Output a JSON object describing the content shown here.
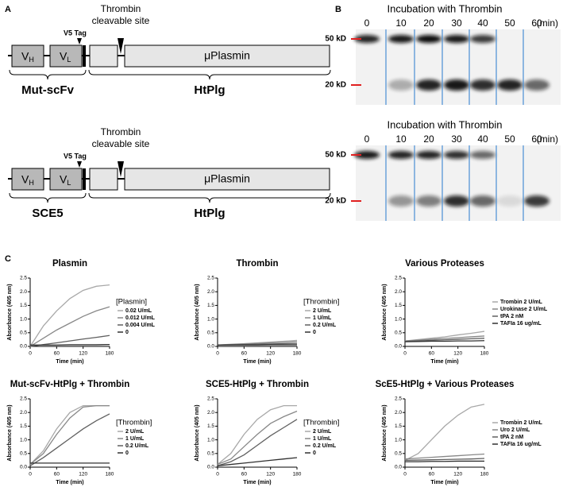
{
  "panel_labels": [
    "A",
    "B",
    "C"
  ],
  "diagrams": [
    {
      "site_lines": [
        "Thrombin",
        "cleavable site"
      ],
      "tag": "V5 Tag",
      "domains": [
        {
          "text": "V",
          "sub": "H"
        },
        {
          "text": "V",
          "sub": "L"
        },
        "μPlasmin"
      ],
      "braces": [
        "Mut-scFv",
        "HtPlg"
      ]
    },
    {
      "site_lines": [
        "Thrombin",
        "cleavable site"
      ],
      "tag": "V5 Tag",
      "domains": [
        {
          "text": "V",
          "sub": "H"
        },
        {
          "text": "V",
          "sub": "L"
        },
        "μPlasmin"
      ],
      "braces": [
        "SCE5",
        "HtPlg"
      ]
    }
  ],
  "blots": [
    {
      "title": "Incubation with Thrombin",
      "lanes": [
        "0",
        "10",
        "20",
        "30",
        "40",
        "50",
        "60"
      ],
      "unit": "(min)",
      "markers": [
        "50 kD",
        "20 kD"
      ]
    },
    {
      "title": "Incubation with Thrombin",
      "lanes": [
        "0",
        "10",
        "20",
        "30",
        "40",
        "50",
        "60"
      ],
      "unit": "(min)",
      "markers": [
        "50 kD",
        "20 kD"
      ]
    }
  ],
  "chart_data": [
    {
      "type": "line",
      "title": "Plasmin",
      "x_label": "Time (min)",
      "y_label": "Absorbance (405 nm)",
      "legend_title": "[Plasmin]",
      "x": [
        0,
        30,
        60,
        90,
        120,
        150,
        180
      ],
      "xlim": [
        0,
        180
      ],
      "xticks": [
        0,
        60,
        120,
        180
      ],
      "ylim": [
        0,
        2.5
      ],
      "yticks": [
        {
          "value": 0,
          "label": "0.0"
        },
        0.5,
        {
          "value": 1,
          "label": "1.0"
        },
        1.5,
        {
          "value": 2,
          "label": "2.0"
        },
        2.5
      ],
      "series": [
        {
          "name": "0.02 U/mL",
          "color": "#a8a8a8",
          "values": [
            0,
            0.75,
            1.3,
            1.75,
            2.05,
            2.2,
            2.25
          ]
        },
        {
          "name": "0.012 U/mL",
          "color": "#888888",
          "values": [
            0,
            0.3,
            0.6,
            0.85,
            1.1,
            1.3,
            1.45
          ]
        },
        {
          "name": "0.004 U/mL",
          "color": "#606060",
          "values": [
            0,
            0.07,
            0.13,
            0.2,
            0.27,
            0.33,
            0.4
          ]
        },
        {
          "name": "0",
          "color": "#303030",
          "values": [
            0.05,
            0.05,
            0.05,
            0.06,
            0.06,
            0.06,
            0.07
          ]
        }
      ]
    },
    {
      "type": "line",
      "title": "Thrombin",
      "x_label": "Time (min)",
      "y_label": "Absorbance (405 nm)",
      "legend_title": "[Thrombin]",
      "x": [
        0,
        30,
        60,
        90,
        120,
        150,
        180
      ],
      "xlim": [
        0,
        180
      ],
      "xticks": [
        0,
        60,
        120,
        180
      ],
      "ylim": [
        0,
        2.5
      ],
      "yticks": [
        {
          "value": 0,
          "label": "0.0"
        },
        0.5,
        {
          "value": 1,
          "label": "1.0"
        },
        1.5,
        {
          "value": 2,
          "label": "2.0"
        },
        2.5
      ],
      "series": [
        {
          "name": "2 U/mL",
          "color": "#a8a8a8",
          "values": [
            0.05,
            0.08,
            0.1,
            0.13,
            0.16,
            0.19,
            0.22
          ]
        },
        {
          "name": "1 U/mL",
          "color": "#888888",
          "values": [
            0.05,
            0.07,
            0.09,
            0.11,
            0.13,
            0.15,
            0.17
          ]
        },
        {
          "name": "0.2 U/mL",
          "color": "#606060",
          "values": [
            0.05,
            0.06,
            0.07,
            0.08,
            0.09,
            0.1,
            0.11
          ]
        },
        {
          "name": "0",
          "color": "#303030",
          "values": [
            0.05,
            0.05,
            0.05,
            0.05,
            0.06,
            0.06,
            0.06
          ]
        }
      ]
    },
    {
      "type": "line",
      "title": "Various Proteases",
      "x_label": "Time (min)",
      "y_label": "Absorbance (405 nm)",
      "x": [
        0,
        30,
        60,
        90,
        120,
        150,
        180
      ],
      "xlim": [
        0,
        180
      ],
      "xticks": [
        0,
        60,
        120,
        180
      ],
      "ylim": [
        0,
        2.5
      ],
      "yticks": [
        {
          "value": 0,
          "label": "0.0"
        },
        0.5,
        {
          "value": 1,
          "label": "1.0"
        },
        1.5,
        {
          "value": 2,
          "label": "2.0"
        },
        2.5
      ],
      "series": [
        {
          "name": "Trombin 2 U/mL",
          "color": "#a8a8a8",
          "values": [
            0.2,
            0.25,
            0.3,
            0.35,
            0.42,
            0.48,
            0.55
          ]
        },
        {
          "name": "Urokinase 2 U/mL",
          "color": "#888888",
          "values": [
            0.2,
            0.23,
            0.26,
            0.29,
            0.32,
            0.35,
            0.38
          ]
        },
        {
          "name": "tPA 2 nM",
          "color": "#606060",
          "values": [
            0.18,
            0.2,
            0.22,
            0.24,
            0.26,
            0.28,
            0.3
          ]
        },
        {
          "name": "TAFIa 16 ug/mL",
          "color": "#303030",
          "values": [
            0.17,
            0.18,
            0.19,
            0.19,
            0.2,
            0.2,
            0.21
          ]
        }
      ]
    },
    {
      "type": "line",
      "title": "Mut-scFv-HtPlg + Thrombin",
      "x_label": "Time (min)",
      "y_label": "Absorbance (405 nm)",
      "legend_title": "[Thrombin]",
      "x": [
        0,
        30,
        60,
        90,
        120,
        150,
        180
      ],
      "xlim": [
        0,
        180
      ],
      "xticks": [
        0,
        60,
        120,
        180
      ],
      "ylim": [
        0,
        2.5
      ],
      "yticks": [
        {
          "value": 0,
          "label": "0.0"
        },
        0.5,
        {
          "value": 1,
          "label": "1.0"
        },
        1.5,
        {
          "value": 2,
          "label": "2.0"
        },
        2.5
      ],
      "series": [
        {
          "name": "2 U/mL",
          "color": "#a8a8a8",
          "values": [
            0.1,
            0.6,
            1.4,
            2.0,
            2.25,
            2.25,
            2.25
          ]
        },
        {
          "name": "1 U/mL",
          "color": "#888888",
          "values": [
            0.1,
            0.5,
            1.2,
            1.8,
            2.2,
            2.25,
            2.25
          ]
        },
        {
          "name": "0.2 U/mL",
          "color": "#606060",
          "values": [
            0.05,
            0.35,
            0.7,
            1.05,
            1.4,
            1.7,
            1.95
          ]
        },
        {
          "name": "0",
          "color": "#303030",
          "values": [
            0.15,
            0.15,
            0.15,
            0.15,
            0.15,
            0.15,
            0.15
          ]
        }
      ]
    },
    {
      "type": "line",
      "title": "SCE5-HtPlg + Thrombin",
      "x_label": "Time (min)",
      "y_label": "Absorbance (405 nm)",
      "legend_title": "[Thrombin]",
      "x": [
        0,
        30,
        60,
        90,
        120,
        150,
        180
      ],
      "xlim": [
        0,
        180
      ],
      "xticks": [
        0,
        60,
        120,
        180
      ],
      "ylim": [
        0,
        2.5
      ],
      "yticks": [
        {
          "value": 0,
          "label": "0.0"
        },
        0.5,
        {
          "value": 1,
          "label": "1.0"
        },
        1.5,
        {
          "value": 2,
          "label": "2.0"
        },
        2.5
      ],
      "series": [
        {
          "name": "2 U/mL",
          "color": "#a8a8a8",
          "values": [
            0.1,
            0.5,
            1.2,
            1.75,
            2.1,
            2.25,
            2.25
          ]
        },
        {
          "name": "1 U/mL",
          "color": "#888888",
          "values": [
            0.1,
            0.3,
            0.75,
            1.2,
            1.6,
            1.85,
            2.05
          ]
        },
        {
          "name": "0.2 U/mL",
          "color": "#606060",
          "values": [
            0.05,
            0.2,
            0.45,
            0.8,
            1.15,
            1.45,
            1.75
          ]
        },
        {
          "name": "0",
          "color": "#303030",
          "values": [
            0.05,
            0.1,
            0.15,
            0.2,
            0.25,
            0.3,
            0.35
          ]
        }
      ]
    },
    {
      "type": "line",
      "title": "ScE5-HtPlg + Various Proteases",
      "x_label": "Time (min)",
      "y_label": "Absorbance (405 nm)",
      "x": [
        0,
        30,
        60,
        90,
        120,
        150,
        180
      ],
      "xlim": [
        0,
        180
      ],
      "xticks": [
        0,
        60,
        120,
        180
      ],
      "ylim": [
        0,
        2.5
      ],
      "yticks": [
        {
          "value": 0,
          "label": "0.0"
        },
        0.5,
        {
          "value": 1,
          "label": "1.0"
        },
        1.5,
        {
          "value": 2,
          "label": "2.0"
        },
        2.5
      ],
      "series": [
        {
          "name": "Trombin 2 U/mL",
          "color": "#a8a8a8",
          "values": [
            0.25,
            0.5,
            1.0,
            1.5,
            1.9,
            2.2,
            2.3
          ]
        },
        {
          "name": "Uro 2 U/mL",
          "color": "#888888",
          "values": [
            0.3,
            0.33,
            0.36,
            0.39,
            0.42,
            0.45,
            0.48
          ]
        },
        {
          "name": "tPA 2 nM",
          "color": "#606060",
          "values": [
            0.25,
            0.26,
            0.27,
            0.28,
            0.29,
            0.3,
            0.32
          ]
        },
        {
          "name": "TAFIa 16 ug/mL",
          "color": "#303030",
          "values": [
            0.2,
            0.2,
            0.21,
            0.21,
            0.22,
            0.22,
            0.22
          ]
        }
      ]
    }
  ]
}
